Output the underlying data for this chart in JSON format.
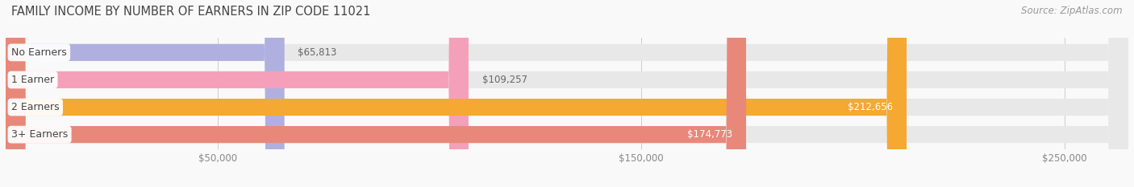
{
  "title": "FAMILY INCOME BY NUMBER OF EARNERS IN ZIP CODE 11021",
  "source": "Source: ZipAtlas.com",
  "categories": [
    "No Earners",
    "1 Earner",
    "2 Earners",
    "3+ Earners"
  ],
  "values": [
    65813,
    109257,
    212656,
    174773
  ],
  "bar_colors": [
    "#b0b0e0",
    "#f4a0bb",
    "#f5a832",
    "#e8887a"
  ],
  "bar_bg_color": "#e8e8e8",
  "label_colors": [
    "#666666",
    "#666666",
    "#ffffff",
    "#ffffff"
  ],
  "value_label_dark": "#666666",
  "xlim_max": 265000,
  "xticks": [
    50000,
    150000,
    250000
  ],
  "xtick_labels": [
    "$50,000",
    "$150,000",
    "$250,000"
  ],
  "title_fontsize": 10.5,
  "source_fontsize": 8.5,
  "bar_label_fontsize": 8.5,
  "category_fontsize": 9,
  "tick_fontsize": 8.5,
  "background_color": "#f9f9f9",
  "bar_height": 0.62,
  "inside_threshold": 0.5
}
